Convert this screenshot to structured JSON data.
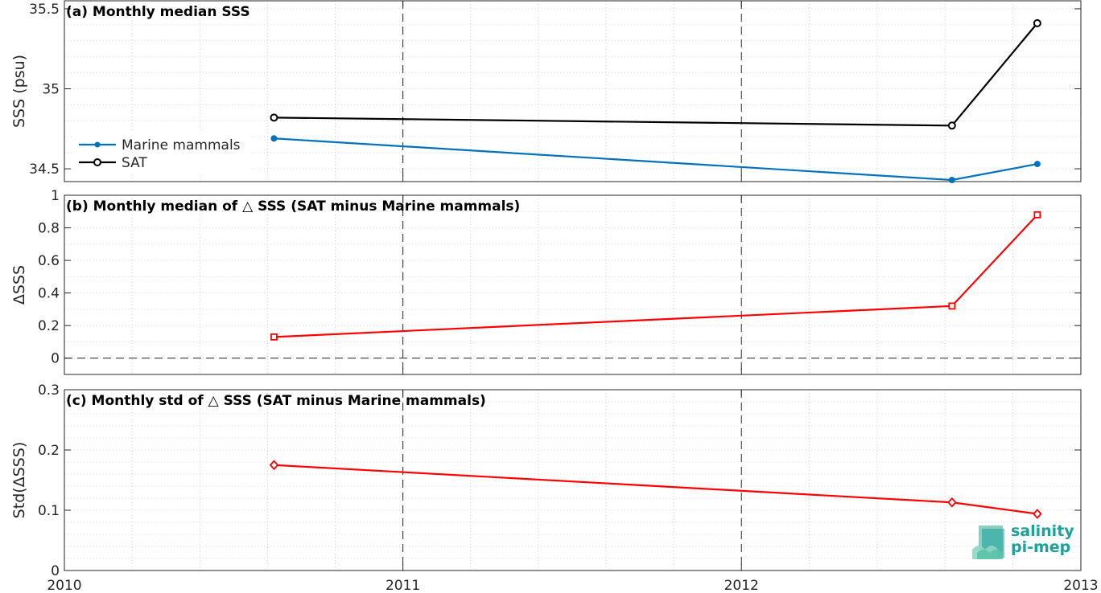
{
  "chart_data": [
    {
      "type": "line",
      "title": "(a) Monthly median SSS",
      "xlabel": "",
      "ylabel": "SSS (psu)",
      "xlim": [
        "2010-01-01",
        "2013-01-01"
      ],
      "ylim": [
        34.42,
        35.55
      ],
      "yticks": [
        "34.5",
        "35",
        "35.5"
      ],
      "grid": true,
      "legend": "left",
      "series": [
        {
          "name": "Marine mammals",
          "color": "#0072bd",
          "marker": "dot",
          "x": [
            "2010-08-15",
            "2012-08-15",
            "2012-11-15"
          ],
          "y": [
            34.69,
            34.43,
            34.53
          ]
        },
        {
          "name": "SAT",
          "color": "#000000",
          "marker": "circle",
          "x": [
            "2010-08-15",
            "2012-08-15",
            "2012-11-15"
          ],
          "y": [
            34.82,
            34.77,
            35.41
          ]
        }
      ]
    },
    {
      "type": "line",
      "title": "(b) Monthly median of △ SSS (SAT minus Marine mammals)",
      "xlabel": "",
      "ylabel": "ΔSSS",
      "xlim": [
        "2010-01-01",
        "2013-01-01"
      ],
      "ylim": [
        -0.1,
        1.0
      ],
      "yticks": [
        "0",
        "0.2",
        "0.4",
        "0.6",
        "0.8",
        "1"
      ],
      "grid": true,
      "series": [
        {
          "color": "#ff0000",
          "marker": "square",
          "x": [
            "2010-08-15",
            "2012-08-15",
            "2012-11-15"
          ],
          "y": [
            0.13,
            0.32,
            0.88
          ]
        }
      ]
    },
    {
      "type": "line",
      "title": "(c) Monthly std of △ SSS (SAT minus Marine mammals)",
      "xlabel": "",
      "ylabel": "Std(ΔSSS)",
      "xlim": [
        "2010-01-01",
        "2013-01-01"
      ],
      "ylim": [
        0,
        0.3
      ],
      "yticks": [
        "0",
        "0.1",
        "0.2",
        "0.3"
      ],
      "xticks": [
        "2010",
        "2011",
        "2012",
        "2013"
      ],
      "grid": true,
      "series": [
        {
          "color": "#ff0000",
          "marker": "diamond",
          "x": [
            "2010-08-15",
            "2012-08-15",
            "2012-11-15"
          ],
          "y": [
            0.175,
            0.113,
            0.094
          ]
        }
      ]
    }
  ],
  "logo": {
    "line1": "salinity",
    "line2": "pi-mep",
    "color": "#1aa39a"
  }
}
